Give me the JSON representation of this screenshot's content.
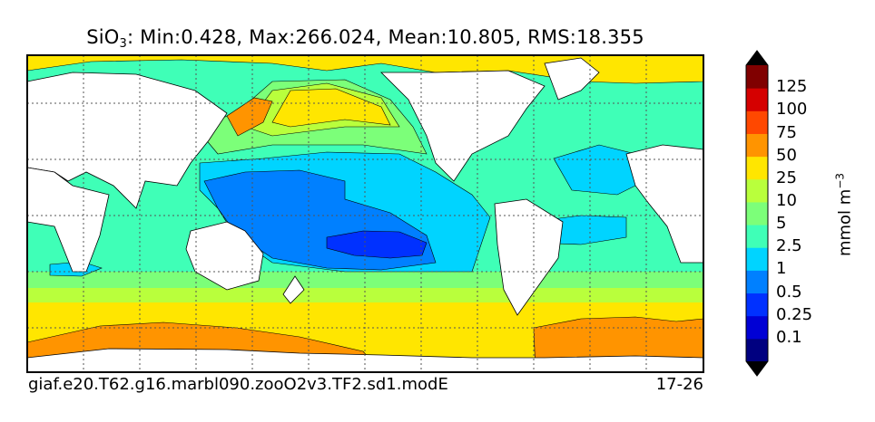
{
  "title": {
    "prefix": "SiO",
    "subscript": "3",
    "stats": ": Min:0.428, Max:266.024, Mean:10.805, RMS:18.355"
  },
  "footer": {
    "case_name": "giaf.e20.T62.g16.marbl090.zooO2v3.TF2.sd1.modE",
    "years": "17-26"
  },
  "colorbar": {
    "unit_base": "mmol m",
    "unit_exponent": "−3",
    "bins": [
      {
        "color": "#000080",
        "label": ""
      },
      {
        "color": "#0000d5",
        "label": "0.1"
      },
      {
        "color": "#0031ff",
        "label": "0.25"
      },
      {
        "color": "#0080ff",
        "label": "0.5"
      },
      {
        "color": "#00d4ff",
        "label": "1"
      },
      {
        "color": "#3fffb7",
        "label": "2.5"
      },
      {
        "color": "#7cff79",
        "label": "5"
      },
      {
        "color": "#b9ff3c",
        "label": "10"
      },
      {
        "color": "#ffe600",
        "label": "25"
      },
      {
        "color": "#ff9400",
        "label": "50"
      },
      {
        "color": "#ff4800",
        "label": "75"
      },
      {
        "color": "#d50000",
        "label": "100"
      },
      {
        "color": "#800000",
        "label": "125"
      }
    ],
    "under_color": "#000000",
    "over_color": "#000000"
  }
}
